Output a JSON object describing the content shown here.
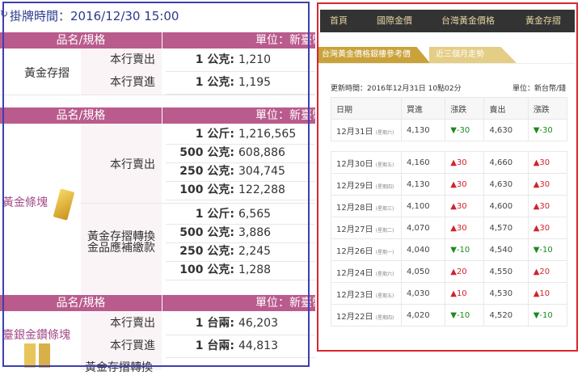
{
  "left": {
    "title": "掛牌時間：2016/12/30 15:00",
    "header_name": "品名/規格",
    "header_unit": "單位：新臺幣",
    "deposit": {
      "name": "黃金存摺",
      "rows": [
        {
          "label": "本行賣出",
          "unit": "1 公克:",
          "price": "1,210"
        },
        {
          "label": "本行買進",
          "unit": "1 公克:",
          "price": "1,195"
        }
      ]
    },
    "bar": {
      "name": "黃金條塊",
      "sell_label": "本行賣出",
      "sell": [
        {
          "unit": "1 公斤:",
          "price": "1,216,565"
        },
        {
          "unit": "500 公克:",
          "price": "608,886"
        },
        {
          "unit": "250 公克:",
          "price": "304,745"
        },
        {
          "unit": "100 公克:",
          "price": "122,288"
        }
      ],
      "convert_label_1": "黃金存摺轉換",
      "convert_label_2": "金品應補繳款",
      "convert": [
        {
          "unit": "1 公斤:",
          "price": "6,565"
        },
        {
          "unit": "500 公克:",
          "price": "3,886"
        },
        {
          "unit": "250 公克:",
          "price": "2,245"
        },
        {
          "unit": "100 公克:",
          "price": "1,288"
        }
      ]
    },
    "diamond": {
      "name": "臺銀金鑽條塊",
      "rows": [
        {
          "label": "本行賣出",
          "unit": "1 台兩:",
          "price": "46,203"
        },
        {
          "label": "本行買進",
          "unit": "1 台兩:",
          "price": "44,813"
        }
      ],
      "next_label": "黃金存摺轉換"
    }
  },
  "right": {
    "nav": [
      "首頁",
      "國際金價",
      "台灣黃金價格",
      "黃金存摺"
    ],
    "tabs": [
      "台灣黃金價格銀樓參考價",
      "近三個月走勢"
    ],
    "update": "更新時間：2016年12月31日 10點02分",
    "unit": "單位：新台幣/錢",
    "columns": [
      "日期",
      "買進",
      "漲跌",
      "賣出",
      "漲跌"
    ],
    "latest": {
      "date": "12月31日",
      "week": "(星期六)",
      "buy": "4,130",
      "buy_chg": "▼-30",
      "sell": "4,630",
      "sell_chg": "▼-30",
      "dir": "dn"
    },
    "rows": [
      {
        "date": "12月30日",
        "week": "(星期五)",
        "buy": "4,160",
        "buy_chg": "▲30",
        "sell": "4,660",
        "sell_chg": "▲30",
        "dir": "up"
      },
      {
        "date": "12月29日",
        "week": "(星期四)",
        "buy": "4,130",
        "buy_chg": "▲30",
        "sell": "4,630",
        "sell_chg": "▲30",
        "dir": "up"
      },
      {
        "date": "12月28日",
        "week": "(星期三)",
        "buy": "4,100",
        "buy_chg": "▲30",
        "sell": "4,600",
        "sell_chg": "▲30",
        "dir": "up"
      },
      {
        "date": "12月27日",
        "week": "(星期二)",
        "buy": "4,070",
        "buy_chg": "▲30",
        "sell": "4,570",
        "sell_chg": "▲30",
        "dir": "up"
      },
      {
        "date": "12月26日",
        "week": "(星期一)",
        "buy": "4,040",
        "buy_chg": "▼-10",
        "sell": "4,540",
        "sell_chg": "▼-10",
        "dir": "dn"
      },
      {
        "date": "12月24日",
        "week": "(星期六)",
        "buy": "4,050",
        "buy_chg": "▲20",
        "sell": "4,550",
        "sell_chg": "▲20",
        "dir": "up"
      },
      {
        "date": "12月23日",
        "week": "(星期五)",
        "buy": "4,030",
        "buy_chg": "▲10",
        "sell": "4,530",
        "sell_chg": "▲10",
        "dir": "up"
      },
      {
        "date": "12月22日",
        "week": "(星期四)",
        "buy": "4,020",
        "buy_chg": "▼-10",
        "sell": "4,520",
        "sell_chg": "▼-10",
        "dir": "dn"
      }
    ]
  },
  "colors": {
    "header": "#b95b8d",
    "nav": "#333333",
    "tab": "#c9a23a",
    "up": "#d0232c",
    "down": "#1c8a1c"
  }
}
